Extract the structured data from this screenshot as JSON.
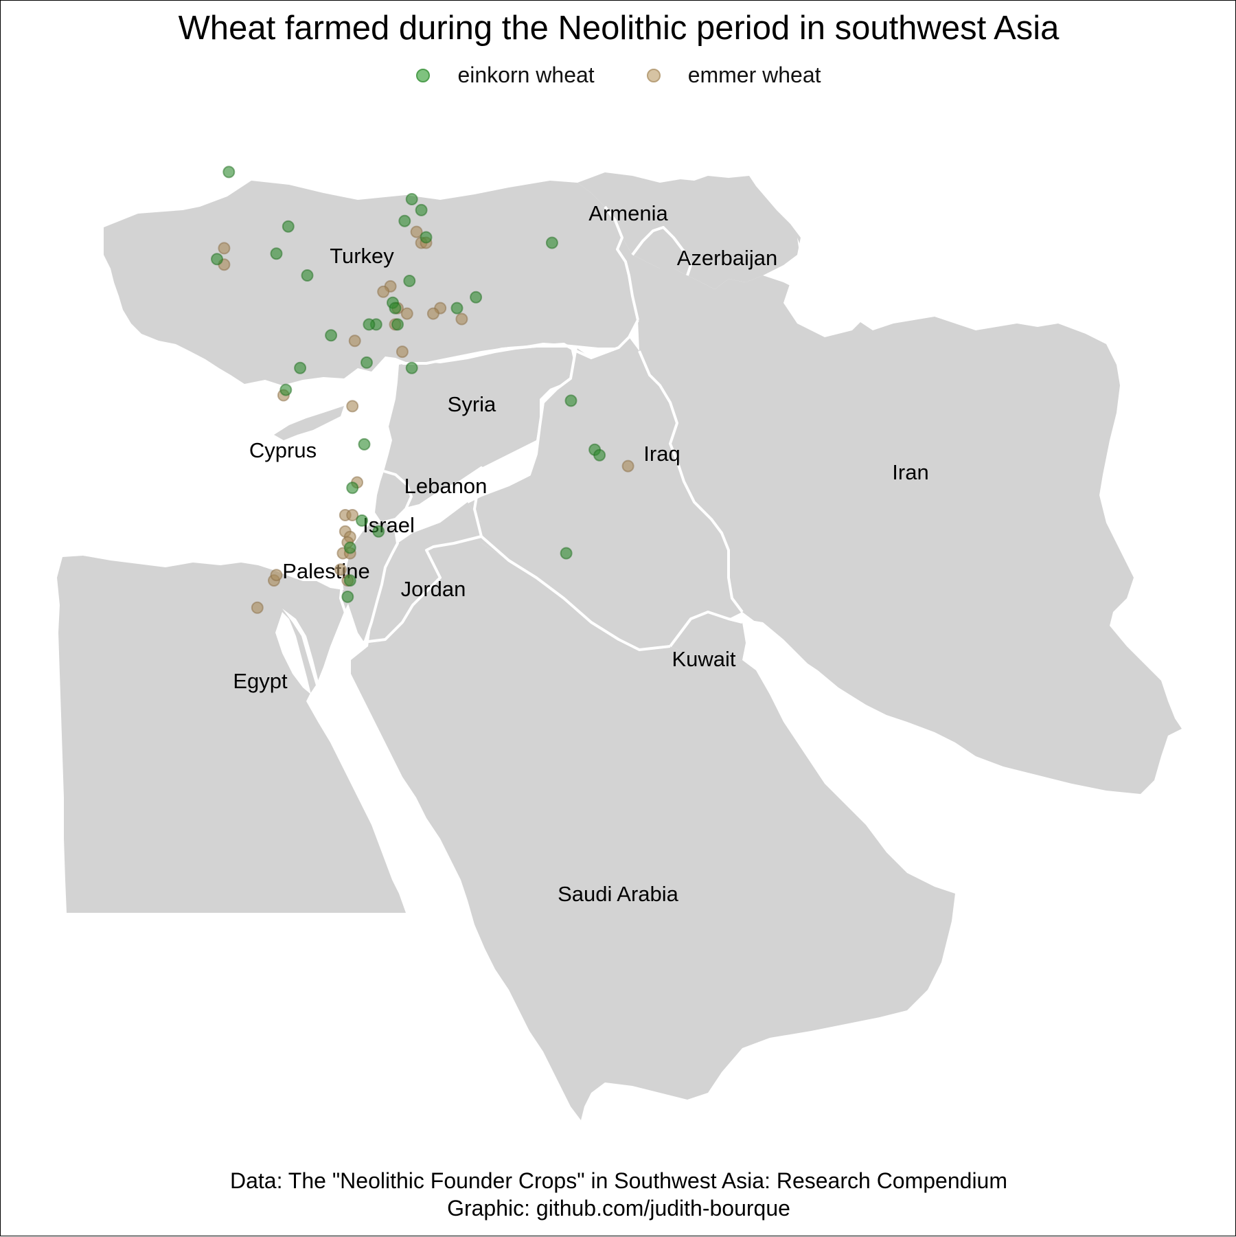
{
  "title": "Wheat farmed during the Neolithic period in southwest Asia",
  "legend": [
    {
      "label": "einkorn wheat",
      "color": "#2e8b2e"
    },
    {
      "label": "emmer wheat",
      "color": "#a88a5a"
    }
  ],
  "caption": {
    "line1": "Data: The \"Neolithic Founder Crops\" in Southwest Asia: Research Compendium",
    "line2": "Graphic: github.com/judith-bourque"
  },
  "map": {
    "land_color": "#d3d3d3",
    "border_color": "#ffffff",
    "countries": [
      "Armenia",
      "Turkey",
      "Azerbaijan",
      "Syria",
      "Cyprus",
      "Iraq",
      "Iran",
      "Lebanon",
      "Israel",
      "Palestine",
      "Jordan",
      "Kuwait",
      "Egypt",
      "Saudi Arabia"
    ]
  },
  "sites": {
    "einkorn": [
      {
        "lon": 30.5,
        "lat": 39.1
      },
      {
        "lon": 30.0,
        "lat": 37.5
      },
      {
        "lon": 33.0,
        "lat": 38.1
      },
      {
        "lon": 32.5,
        "lat": 37.6
      },
      {
        "lon": 33.8,
        "lat": 37.2
      },
      {
        "lon": 38.2,
        "lat": 38.6
      },
      {
        "lon": 38.6,
        "lat": 38.4
      },
      {
        "lon": 37.9,
        "lat": 38.2
      },
      {
        "lon": 38.8,
        "lat": 37.9
      },
      {
        "lon": 38.1,
        "lat": 37.1
      },
      {
        "lon": 37.4,
        "lat": 36.7
      },
      {
        "lon": 37.5,
        "lat": 36.6
      },
      {
        "lon": 37.6,
        "lat": 36.3
      },
      {
        "lon": 36.7,
        "lat": 36.3
      },
      {
        "lon": 36.4,
        "lat": 36.3
      },
      {
        "lon": 34.8,
        "lat": 36.1
      },
      {
        "lon": 33.5,
        "lat": 35.5
      },
      {
        "lon": 32.9,
        "lat": 35.1
      },
      {
        "lon": 36.3,
        "lat": 35.6
      },
      {
        "lon": 38.2,
        "lat": 35.5
      },
      {
        "lon": 40.1,
        "lat": 36.6
      },
      {
        "lon": 40.9,
        "lat": 36.8
      },
      {
        "lon": 44.1,
        "lat": 37.8
      },
      {
        "lon": 44.9,
        "lat": 34.9
      },
      {
        "lon": 45.9,
        "lat": 34.0
      },
      {
        "lon": 46.1,
        "lat": 33.9
      },
      {
        "lon": 44.7,
        "lat": 32.1
      },
      {
        "lon": 36.2,
        "lat": 34.1
      },
      {
        "lon": 36.1,
        "lat": 32.7
      },
      {
        "lon": 36.8,
        "lat": 32.5
      },
      {
        "lon": 35.7,
        "lat": 33.3
      },
      {
        "lon": 35.6,
        "lat": 32.2
      },
      {
        "lon": 35.6,
        "lat": 31.6
      },
      {
        "lon": 35.5,
        "lat": 31.3
      }
    ],
    "emmer": [
      {
        "lon": 30.3,
        "lat": 37.7
      },
      {
        "lon": 30.3,
        "lat": 37.4
      },
      {
        "lon": 38.4,
        "lat": 38.0
      },
      {
        "lon": 38.6,
        "lat": 37.8
      },
      {
        "lon": 38.8,
        "lat": 37.8
      },
      {
        "lon": 37.3,
        "lat": 37.0
      },
      {
        "lon": 37.0,
        "lat": 36.9
      },
      {
        "lon": 37.6,
        "lat": 36.6
      },
      {
        "lon": 38.0,
        "lat": 36.5
      },
      {
        "lon": 39.4,
        "lat": 36.6
      },
      {
        "lon": 39.1,
        "lat": 36.5
      },
      {
        "lon": 40.3,
        "lat": 36.4
      },
      {
        "lon": 37.5,
        "lat": 36.3
      },
      {
        "lon": 37.8,
        "lat": 35.8
      },
      {
        "lon": 35.8,
        "lat": 36.0
      },
      {
        "lon": 32.8,
        "lat": 35.0
      },
      {
        "lon": 35.7,
        "lat": 34.8
      },
      {
        "lon": 35.9,
        "lat": 33.4
      },
      {
        "lon": 35.4,
        "lat": 32.8
      },
      {
        "lon": 35.7,
        "lat": 32.8
      },
      {
        "lon": 35.4,
        "lat": 32.5
      },
      {
        "lon": 35.6,
        "lat": 32.4
      },
      {
        "lon": 35.5,
        "lat": 32.3
      },
      {
        "lon": 35.3,
        "lat": 32.1
      },
      {
        "lon": 35.6,
        "lat": 32.1
      },
      {
        "lon": 35.2,
        "lat": 31.8
      },
      {
        "lon": 35.5,
        "lat": 31.6
      },
      {
        "lon": 32.4,
        "lat": 31.6
      },
      {
        "lon": 32.5,
        "lat": 31.7
      },
      {
        "lon": 31.7,
        "lat": 31.1
      },
      {
        "lon": 47.3,
        "lat": 33.7
      }
    ]
  }
}
